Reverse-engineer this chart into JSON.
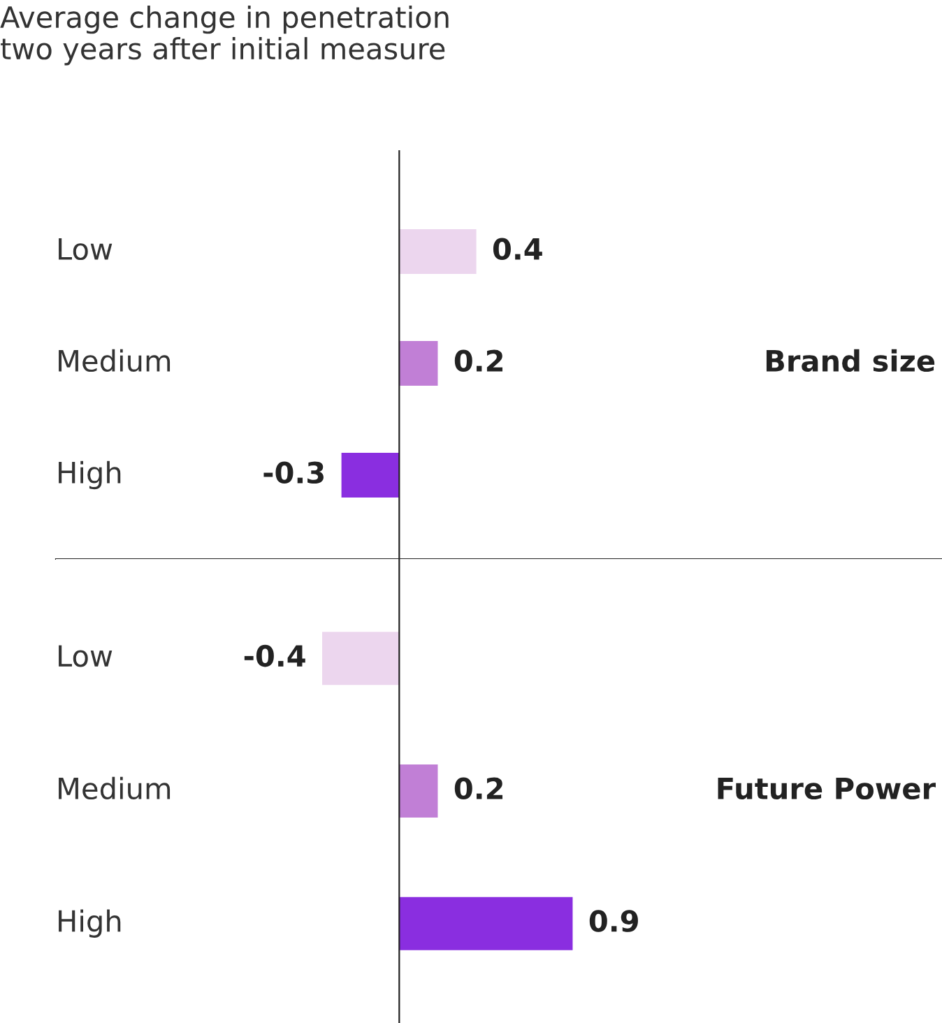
{
  "chart_data": [
    {
      "type": "bar",
      "orientation": "horizontal",
      "title": "Average change in penetration\ntwo years after initial measure",
      "categories": [
        "Low",
        "Medium",
        "High"
      ],
      "values": [
        0.4,
        0.2,
        -0.3
      ],
      "colors": [
        "#ecd6ee",
        "#c17fd6",
        "#8a2ee0"
      ],
      "data_labels": true,
      "annotations": [
        "Brand size"
      ]
    },
    {
      "type": "bar",
      "orientation": "horizontal",
      "categories": [
        "Low",
        "Medium",
        "High"
      ],
      "values": [
        -0.4,
        0.2,
        0.9
      ],
      "colors": [
        "#ecd6ee",
        "#c17fd6",
        "#8a2ee0"
      ],
      "data_labels": true,
      "annotations": [
        "Future Power"
      ]
    }
  ]
}
